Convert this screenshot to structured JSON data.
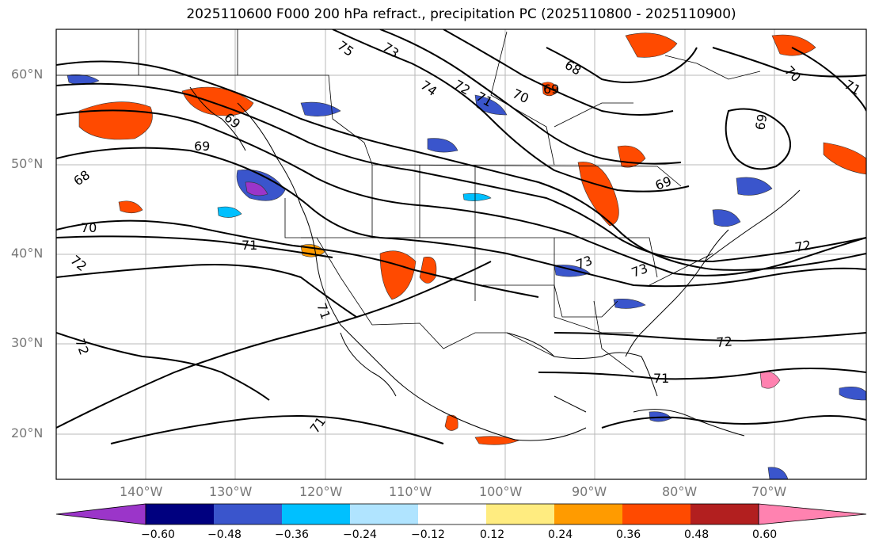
{
  "title": "2025110600 F000 200 hPa refract., precipitation PC (2025110800 - 2025110900)",
  "lat_labels": [
    "60°N",
    "50°N",
    "40°N",
    "30°N",
    "20°N"
  ],
  "lon_labels": [
    "140°W",
    "130°W",
    "120°W",
    "110°W",
    "100°W",
    "90°W",
    "80°W",
    "70°W"
  ],
  "colorbar": {
    "colors": [
      "#9b35c9",
      "#00007f",
      "#3a55cc",
      "#00c0ff",
      "#b0e4ff",
      "#ffffff",
      "#ffec80",
      "#ff9b00",
      "#ff4a00",
      "#b21f1f",
      "#ff82b0"
    ],
    "tick_labels": [
      "−0.60",
      "−0.48",
      "−0.36",
      "−0.24",
      "−0.12",
      "0.12",
      "0.24",
      "0.36",
      "0.48",
      "0.60"
    ]
  },
  "contour_labels": [
    "75",
    "73",
    "74",
    "72",
    "71",
    "70",
    "69",
    "68",
    "69",
    "70",
    "71",
    "68",
    "69",
    "69",
    "70",
    "71",
    "72",
    "72",
    "73",
    "73",
    "71",
    "71",
    "72",
    "71",
    "72",
    "69"
  ]
}
